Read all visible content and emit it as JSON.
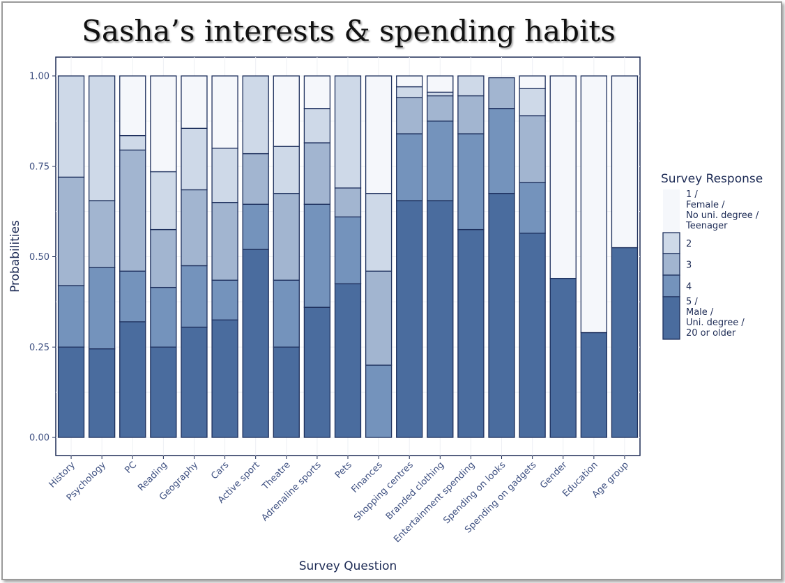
{
  "chart_data": {
    "type": "bar",
    "stacked": true,
    "title": "Sasha’s interests & spending habits",
    "xlabel": "Survey Question",
    "ylabel": "Probabilities",
    "ylim": [
      0,
      1
    ],
    "yticks": [
      "0.00",
      "0.25",
      "0.50",
      "0.75",
      "1.00"
    ],
    "grid": true,
    "legend_position": "right",
    "legend_title": "Survey Response",
    "categories": [
      "History",
      "Psychology",
      "PC",
      "Reading",
      "Geography",
      "Cars",
      "Active sport",
      "Theatre",
      "Adrenaline sports",
      "Pets",
      "Finances",
      "Shopping centres",
      "Branded clothing",
      "Entertainment spending",
      "Spending on looks",
      "Spending on gadgets",
      "Gender",
      "Education",
      "Age group"
    ],
    "series": [
      {
        "name": "5 / Male / Uni. degree / 20 or older",
        "lines": [
          "5 /",
          "Male /",
          "Uni. degree /",
          "20 or older"
        ],
        "color": "#4a6c9e",
        "values": [
          0.25,
          0.245,
          0.32,
          0.25,
          0.305,
          0.325,
          0.52,
          0.25,
          0.36,
          0.425,
          0.0,
          0.655,
          0.655,
          0.575,
          0.675,
          0.565,
          0.44,
          0.29,
          0.525
        ]
      },
      {
        "name": "4",
        "lines": [
          "4"
        ],
        "color": "#7493bc",
        "values": [
          0.17,
          0.225,
          0.14,
          0.165,
          0.17,
          0.11,
          0.125,
          0.185,
          0.285,
          0.185,
          0.2,
          0.185,
          0.22,
          0.265,
          0.235,
          0.14,
          0,
          0,
          0
        ]
      },
      {
        "name": "3",
        "lines": [
          "3"
        ],
        "color": "#a2b5d0",
        "values": [
          0.3,
          0.185,
          0.335,
          0.16,
          0.21,
          0.215,
          0.14,
          0.24,
          0.17,
          0.08,
          0.26,
          0.1,
          0.07,
          0.105,
          0.085,
          0.185,
          0,
          0,
          0
        ]
      },
      {
        "name": "2",
        "lines": [
          "2"
        ],
        "color": "#ced9e8",
        "values": [
          0.28,
          0.345,
          0.04,
          0.16,
          0.17,
          0.15,
          0.215,
          0.13,
          0.095,
          0.31,
          0.215,
          0.03,
          0.01,
          0.055,
          0,
          0.075,
          0,
          0,
          0
        ]
      },
      {
        "name": "1 / Female / No uni. degree / Teenager",
        "lines": [
          "1 /",
          "Female /",
          "No uni. degree /",
          "Teenager"
        ],
        "color": "#f5f7fb",
        "values": [
          0,
          0,
          0.165,
          0.265,
          0.145,
          0.2,
          0,
          0.195,
          0.09,
          0,
          0.325,
          0.03,
          0.045,
          0,
          0,
          0.035,
          0.56,
          0.71,
          0.475
        ]
      }
    ]
  }
}
